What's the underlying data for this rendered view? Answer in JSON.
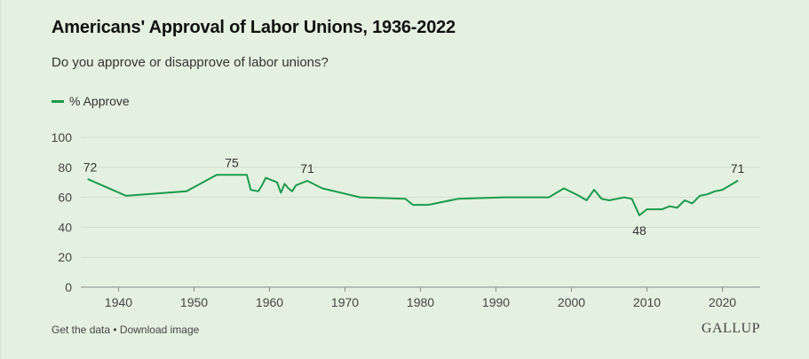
{
  "header": {
    "title": "Americans' Approval of Labor Unions, 1936-2022",
    "subtitle": "Do you approve or disapprove of labor unions?"
  },
  "footer": {
    "get_data": "Get the data",
    "separator": " • ",
    "download": "Download image",
    "brand": "GALLUP"
  },
  "colors": {
    "line": "#1b9a4b",
    "grid": "#cfdecb",
    "axis": "#888888",
    "background": "#e4f1e0"
  },
  "chart_data": {
    "type": "line",
    "title": "Americans' Approval of Labor Unions, 1936-2022",
    "subtitle": "Do you approve or disapprove of labor unions?",
    "xlabel": "",
    "ylabel": "",
    "xlim": [
      1935,
      2025
    ],
    "ylim": [
      0,
      100
    ],
    "x_ticks": [
      1940,
      1950,
      1960,
      1970,
      1980,
      1990,
      2000,
      2010,
      2020
    ],
    "y_ticks": [
      0,
      20,
      40,
      60,
      80,
      100
    ],
    "grid": true,
    "legend_position": "top-left",
    "series": [
      {
        "name": "% Approve",
        "x": [
          1936,
          1941,
          1949,
          1953,
          1957,
          1957.5,
          1958.5,
          1959,
          1959.5,
          1961,
          1961.5,
          1962,
          1962.5,
          1963,
          1963.5,
          1965,
          1967,
          1972,
          1978,
          1979,
          1981,
          1985,
          1991,
          1997,
          1999,
          2001,
          2002,
          2003,
          2004,
          2005,
          2006,
          2007,
          2008,
          2009,
          2010,
          2011,
          2012,
          2013,
          2014,
          2015,
          2016,
          2017,
          2018,
          2019,
          2020,
          2021,
          2022
        ],
        "y": [
          72,
          61,
          64,
          75,
          75,
          65,
          64,
          68,
          73,
          70,
          63,
          69,
          66,
          64,
          68,
          71,
          66,
          60,
          59,
          55,
          55,
          59,
          60,
          60,
          66,
          61,
          58,
          65,
          59,
          58,
          59,
          60,
          59,
          48,
          52,
          52,
          52,
          54,
          53,
          58,
          56,
          61,
          62,
          64,
          65,
          68,
          71
        ]
      }
    ],
    "annotations": [
      {
        "x": 1936,
        "y": 72,
        "label": "72"
      },
      {
        "x": 1955,
        "y": 75,
        "label": "75"
      },
      {
        "x": 1965,
        "y": 71,
        "label": "71"
      },
      {
        "x": 2009,
        "y": 48,
        "label": "48"
      },
      {
        "x": 2022,
        "y": 71,
        "label": "71"
      }
    ]
  }
}
